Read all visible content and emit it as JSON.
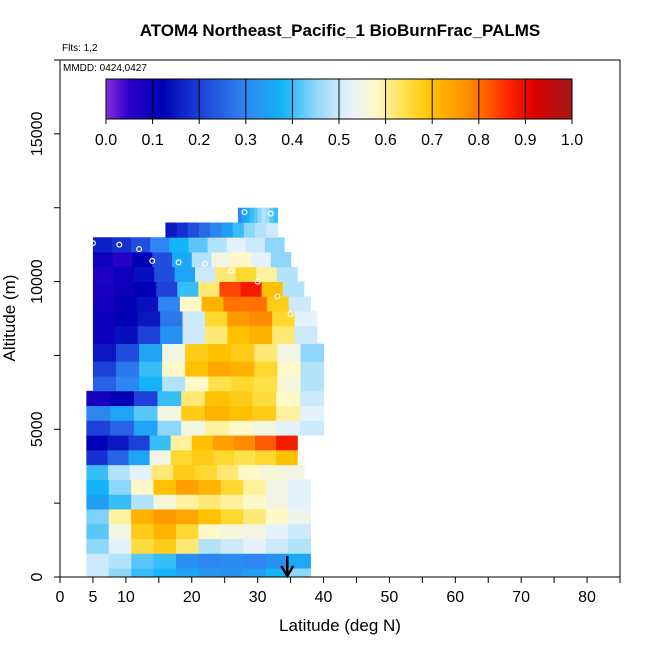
{
  "chart_data": {
    "type": "heatmap",
    "title": "ATOM4 Northeast_Pacific_1 BioBurnFrac_PALMS",
    "flights_note": "Flts: 1,2",
    "dates_note": "MMDD: 0424,0427",
    "xlabel": "Latitude (deg N)",
    "ylabel": "Altitude (m)",
    "xlim": [
      0,
      85
    ],
    "ylim": [
      0,
      17500
    ],
    "x_ticks": [
      0,
      5,
      10,
      20,
      30,
      40,
      50,
      60,
      70,
      80
    ],
    "y_ticks": [
      0,
      5000,
      10000,
      15000
    ],
    "colorbar": {
      "range": [
        0,
        1
      ],
      "ticks": [
        "0.0",
        "0.1",
        "0.2",
        "0.3",
        "0.4",
        "0.5",
        "0.6",
        "0.7",
        "0.8",
        "0.9",
        "1.0"
      ],
      "stops": [
        {
          "v": 0.0,
          "c": "#8a2be2"
        },
        {
          "v": 0.05,
          "c": "#2b00c8"
        },
        {
          "v": 0.12,
          "c": "#0000b4"
        },
        {
          "v": 0.2,
          "c": "#1e3fd8"
        },
        {
          "v": 0.3,
          "c": "#2f86f0"
        },
        {
          "v": 0.38,
          "c": "#14b4f8"
        },
        {
          "v": 0.45,
          "c": "#8fd6fb"
        },
        {
          "v": 0.52,
          "c": "#e4f2fc"
        },
        {
          "v": 0.58,
          "c": "#fff8c8"
        },
        {
          "v": 0.64,
          "c": "#ffe24a"
        },
        {
          "v": 0.7,
          "c": "#ffc000"
        },
        {
          "v": 0.78,
          "c": "#ff8c00"
        },
        {
          "v": 0.86,
          "c": "#ff2a00"
        },
        {
          "v": 0.92,
          "c": "#dc0000"
        },
        {
          "v": 1.0,
          "c": "#a01a1a"
        }
      ]
    },
    "bands": [
      {
        "alt_bottom": 0,
        "alt_top": 300,
        "lat_start": 4,
        "lat_end": 38,
        "values": [
          0.5,
          0.45,
          0.4,
          0.38,
          0.35,
          0.33,
          0.32,
          0.34,
          0.38,
          0.45
        ]
      },
      {
        "alt_bottom": 300,
        "alt_top": 800,
        "lat_start": 4,
        "lat_end": 38,
        "values": [
          0.5,
          0.48,
          0.42,
          0.4,
          0.32,
          0.3,
          0.31,
          0.3,
          0.32,
          0.36
        ]
      },
      {
        "alt_bottom": 800,
        "alt_top": 1300,
        "lat_start": 4,
        "lat_end": 38,
        "values": [
          0.45,
          0.52,
          0.65,
          0.68,
          0.62,
          0.48,
          0.5,
          0.52,
          0.5,
          0.48
        ]
      },
      {
        "alt_bottom": 1300,
        "alt_top": 1800,
        "lat_start": 4,
        "lat_end": 38,
        "values": [
          0.42,
          0.55,
          0.68,
          0.72,
          0.66,
          0.58,
          0.56,
          0.55,
          0.52,
          0.5
        ]
      },
      {
        "alt_bottom": 1800,
        "alt_top": 2300,
        "lat_start": 4,
        "lat_end": 38,
        "values": [
          0.44,
          0.6,
          0.72,
          0.76,
          0.74,
          0.7,
          0.66,
          0.62,
          0.58,
          0.54
        ]
      },
      {
        "alt_bottom": 2300,
        "alt_top": 2800,
        "lat_start": 4,
        "lat_end": 38,
        "values": [
          0.34,
          0.4,
          0.48,
          0.56,
          0.6,
          0.62,
          0.6,
          0.58,
          0.55,
          0.52
        ]
      },
      {
        "alt_bottom": 2800,
        "alt_top": 3300,
        "lat_start": 4,
        "lat_end": 38,
        "values": [
          0.38,
          0.45,
          0.58,
          0.7,
          0.75,
          0.72,
          0.66,
          0.6,
          0.55,
          0.52
        ]
      },
      {
        "alt_bottom": 3300,
        "alt_top": 3800,
        "lat_start": 4,
        "lat_end": 37,
        "values": [
          0.4,
          0.48,
          0.52,
          0.62,
          0.68,
          0.66,
          0.62,
          0.58,
          0.56,
          0.55
        ]
      },
      {
        "alt_bottom": 3800,
        "alt_top": 4300,
        "lat_start": 4,
        "lat_end": 36,
        "values": [
          0.18,
          0.25,
          0.35,
          0.55,
          0.66,
          0.68,
          0.66,
          0.64,
          0.66,
          0.7
        ]
      },
      {
        "alt_bottom": 4300,
        "alt_top": 4800,
        "lat_start": 4,
        "lat_end": 36,
        "values": [
          0.12,
          0.15,
          0.2,
          0.4,
          0.6,
          0.7,
          0.75,
          0.78,
          0.82,
          0.88
        ]
      },
      {
        "alt_bottom": 4800,
        "alt_top": 5300,
        "lat_start": 4,
        "lat_end": 40,
        "values": [
          0.2,
          0.25,
          0.35,
          0.45,
          0.55,
          0.6,
          0.58,
          0.55,
          0.52,
          0.5
        ]
      },
      {
        "alt_bottom": 5300,
        "alt_top": 5800,
        "lat_start": 4,
        "lat_end": 40,
        "values": [
          0.3,
          0.35,
          0.42,
          0.55,
          0.68,
          0.72,
          0.7,
          0.68,
          0.6,
          0.52
        ]
      },
      {
        "alt_bottom": 5800,
        "alt_top": 6300,
        "lat_start": 4,
        "lat_end": 40,
        "values": [
          0.08,
          0.12,
          0.2,
          0.4,
          0.62,
          0.7,
          0.68,
          0.65,
          0.58,
          0.5
        ]
      },
      {
        "alt_bottom": 6300,
        "alt_top": 6800,
        "lat_start": 5,
        "lat_end": 40,
        "values": [
          0.25,
          0.3,
          0.38,
          0.48,
          0.58,
          0.64,
          0.66,
          0.64,
          0.56,
          0.48
        ]
      },
      {
        "alt_bottom": 6800,
        "alt_top": 7300,
        "lat_start": 5,
        "lat_end": 40,
        "values": [
          0.2,
          0.28,
          0.4,
          0.58,
          0.7,
          0.74,
          0.72,
          0.66,
          0.58,
          0.48
        ]
      },
      {
        "alt_bottom": 7300,
        "alt_top": 7900,
        "lat_start": 5,
        "lat_end": 40,
        "values": [
          0.15,
          0.22,
          0.35,
          0.55,
          0.68,
          0.7,
          0.68,
          0.62,
          0.55,
          0.45
        ]
      },
      {
        "alt_bottom": 7900,
        "alt_top": 8500,
        "lat_start": 5,
        "lat_end": 39,
        "values": [
          0.1,
          0.14,
          0.2,
          0.32,
          0.5,
          0.62,
          0.7,
          0.72,
          0.62,
          0.5
        ]
      },
      {
        "alt_bottom": 8500,
        "alt_top": 9000,
        "lat_start": 5,
        "lat_end": 39,
        "values": [
          0.1,
          0.12,
          0.15,
          0.28,
          0.5,
          0.66,
          0.76,
          0.78,
          0.66,
          0.52
        ]
      },
      {
        "alt_bottom": 9000,
        "alt_top": 9500,
        "lat_start": 5,
        "lat_end": 38,
        "values": [
          0.09,
          0.11,
          0.14,
          0.3,
          0.58,
          0.72,
          0.8,
          0.8,
          0.68,
          0.5
        ]
      },
      {
        "alt_bottom": 9500,
        "alt_top": 10000,
        "lat_start": 5,
        "lat_end": 37,
        "values": [
          0.08,
          0.1,
          0.12,
          0.2,
          0.4,
          0.62,
          0.84,
          0.88,
          0.7,
          0.48
        ]
      },
      {
        "alt_bottom": 10000,
        "alt_top": 10500,
        "lat_start": 5,
        "lat_end": 36,
        "values": [
          0.07,
          0.1,
          0.14,
          0.22,
          0.35,
          0.5,
          0.62,
          0.66,
          0.6,
          0.48
        ]
      },
      {
        "alt_bottom": 10500,
        "alt_top": 11000,
        "lat_start": 5,
        "lat_end": 35,
        "values": [
          0.1,
          0.06,
          0.12,
          0.22,
          0.36,
          0.48,
          0.55,
          0.58,
          0.52,
          0.45
        ]
      },
      {
        "alt_bottom": 11000,
        "alt_top": 11500,
        "lat_start": 5,
        "lat_end": 34,
        "values": [
          0.16,
          0.18,
          0.22,
          0.3,
          0.38,
          0.42,
          0.48,
          0.52,
          0.5,
          0.45
        ]
      },
      {
        "alt_bottom": 11500,
        "alt_top": 12000,
        "lat_start": 16,
        "lat_end": 33,
        "values": [
          0.15,
          0.18,
          0.22,
          0.26,
          0.3,
          0.34,
          0.4,
          0.45,
          0.48,
          0.5
        ]
      },
      {
        "alt_bottom": 12000,
        "alt_top": 12500,
        "lat_start": 27,
        "lat_end": 33,
        "values": [
          0.3,
          0.35,
          0.38,
          0.4,
          0.42,
          0.45,
          0.48,
          0.46,
          0.42,
          0.4
        ]
      }
    ],
    "flight_track": [
      {
        "x": 5.0,
        "y": 11300
      },
      {
        "x": 9.0,
        "y": 11250
      },
      {
        "x": 12.0,
        "y": 11100
      },
      {
        "x": 14.0,
        "y": 10700
      },
      {
        "x": 18.0,
        "y": 10650
      },
      {
        "x": 22.0,
        "y": 10600
      },
      {
        "x": 26.0,
        "y": 10350
      },
      {
        "x": 30.0,
        "y": 10000
      },
      {
        "x": 33.0,
        "y": 9500
      },
      {
        "x": 35.0,
        "y": 8900
      },
      {
        "x": 28.0,
        "y": 12350
      },
      {
        "x": 32.0,
        "y": 12300
      }
    ],
    "marker_latitude": 34.5
  }
}
